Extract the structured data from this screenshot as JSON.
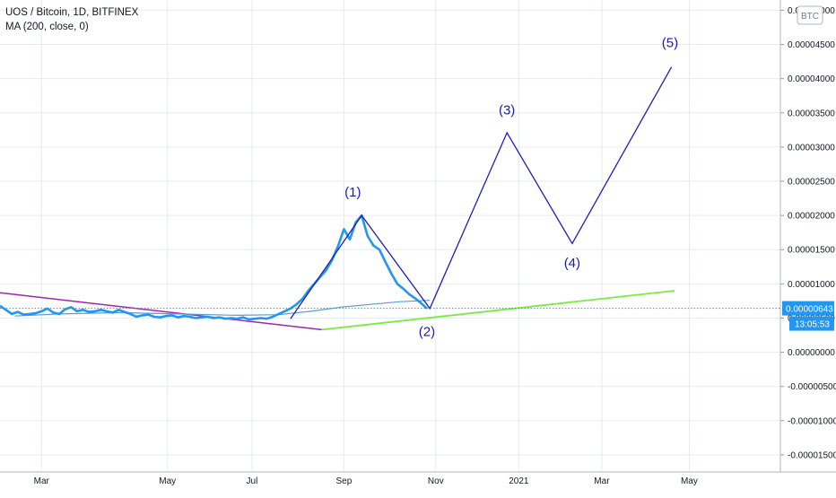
{
  "legend": {
    "symbol_line": "UOS / Bitcoin, 1D, BITFINEX",
    "indicator_line": "MA (200, close, 0)"
  },
  "currency_badge": "BTC",
  "price_label": "0.00000643",
  "countdown_label": "13:05:53",
  "colors": {
    "price": "#2196f3",
    "ma": "#5b9bd5",
    "wave": "#1f1fb4",
    "wave_label": "#1a1ab8",
    "upper_trend": "#9c27b0",
    "lower_trend": "#76ee3e",
    "price_tag_bg": "#2196f3",
    "grid": "#e6ebf1",
    "axis_text": "#131722"
  },
  "chart_data": {
    "type": "line",
    "title": "UOS / Bitcoin, 1D, BITFINEX",
    "y_ticks": [
      "0.00005000",
      "0.00004500",
      "0.00004000",
      "0.00003500",
      "0.00003000",
      "0.00002500",
      "0.00002000",
      "0.00001500",
      "0.00001000",
      "0.00000500",
      "0.00000000",
      "-0.00000500",
      "-0.00001000",
      "-0.00001500"
    ],
    "x_ticks": [
      "Mar",
      "May",
      "Jul",
      "Sep",
      "Nov",
      "2021",
      "Mar",
      "May"
    ],
    "ylim": [
      -1.75e-05,
      5.15e-05
    ],
    "grid": true,
    "price_series": {
      "name": "",
      "points": [
        [
          0,
          6.8e-06
        ],
        [
          4,
          6.2e-06
        ],
        [
          8,
          5.6e-06
        ],
        [
          12,
          5.9e-06
        ],
        [
          16,
          5.5e-06
        ],
        [
          20,
          5.6e-06
        ],
        [
          24,
          5.7e-06
        ],
        [
          28,
          6e-06
        ],
        [
          32,
          6.4e-06
        ],
        [
          36,
          5.8e-06
        ],
        [
          40,
          5.6e-06
        ],
        [
          44,
          6.3e-06
        ],
        [
          48,
          6.6e-06
        ],
        [
          52,
          6e-06
        ],
        [
          56,
          6.2e-06
        ],
        [
          60,
          5.9e-06
        ],
        [
          64,
          6e-06
        ],
        [
          68,
          6.2e-06
        ],
        [
          72,
          6e-06
        ],
        [
          76,
          5.8e-06
        ],
        [
          80,
          6.2e-06
        ],
        [
          84,
          5.9e-06
        ],
        [
          88,
          5.6e-06
        ],
        [
          92,
          5.2e-06
        ],
        [
          96,
          5.4e-06
        ],
        [
          100,
          5.5e-06
        ],
        [
          104,
          5.2e-06
        ],
        [
          108,
          5.1e-06
        ],
        [
          112,
          5.3e-06
        ],
        [
          116,
          5.4e-06
        ],
        [
          120,
          5.1e-06
        ],
        [
          124,
          5.3e-06
        ],
        [
          128,
          5.2e-06
        ],
        [
          132,
          5e-06
        ],
        [
          136,
          5.1e-06
        ],
        [
          140,
          5.2e-06
        ],
        [
          144,
          5e-06
        ],
        [
          148,
          5.1e-06
        ],
        [
          152,
          4.9e-06
        ],
        [
          156,
          5e-06
        ],
        [
          160,
          4.9e-06
        ],
        [
          164,
          5.1e-06
        ],
        [
          168,
          4.8e-06
        ],
        [
          172,
          4.9e-06
        ],
        [
          176,
          5e-06
        ],
        [
          180,
          4.9e-06
        ],
        [
          184,
          5.2e-06
        ],
        [
          188,
          5.6e-06
        ],
        [
          192,
          6e-06
        ],
        [
          196,
          6.4e-06
        ],
        [
          200,
          7e-06
        ],
        [
          204,
          7.8e-06
        ],
        [
          208,
          9e-06
        ],
        [
          212,
          1e-05
        ],
        [
          216,
          1.1e-05
        ],
        [
          220,
          1.2e-05
        ],
        [
          224,
          1.35e-05
        ],
        [
          228,
          1.55e-05
        ],
        [
          232,
          1.8e-05
        ],
        [
          236,
          1.65e-05
        ],
        [
          240,
          1.9e-05
        ],
        [
          244,
          2e-05
        ],
        [
          248,
          1.7e-05
        ],
        [
          252,
          1.56e-05
        ],
        [
          256,
          1.5e-05
        ],
        [
          260,
          1.32e-05
        ],
        [
          264,
          1.15e-05
        ],
        [
          268,
          1e-05
        ],
        [
          272,
          9.3e-06
        ],
        [
          276,
          8.5e-06
        ],
        [
          280,
          7.9e-06
        ],
        [
          284,
          7.2e-06
        ],
        [
          288,
          6.4e-06
        ]
      ]
    },
    "ma_series": {
      "name": "MA (200, close, 0)",
      "points": [
        [
          10,
          5.3e-06
        ],
        [
          40,
          5.6e-06
        ],
        [
          80,
          5.8e-06
        ],
        [
          120,
          5.6e-06
        ],
        [
          160,
          5.4e-06
        ],
        [
          188,
          5.5e-06
        ],
        [
          210,
          6e-06
        ],
        [
          230,
          6.6e-06
        ],
        [
          250,
          7e-06
        ],
        [
          270,
          7.4e-06
        ],
        [
          290,
          7.6e-06
        ]
      ]
    },
    "wave_series": {
      "name": "",
      "points": [
        [
          196,
          4.9e-06
        ],
        [
          244,
          2e-05
        ],
        [
          290,
          6.4e-06
        ],
        [
          342,
          3.21e-05
        ],
        [
          386,
          1.59e-05
        ],
        [
          453,
          4.17e-05
        ]
      ]
    },
    "wave_labels": [
      {
        "text": "(1)",
        "x": 238,
        "y": 2.28e-05
      },
      {
        "text": "(2)",
        "x": 288,
        "y": 2.4e-06
      },
      {
        "text": "(3)",
        "x": 342,
        "y": 3.48e-05
      },
      {
        "text": "(4)",
        "x": 386,
        "y": 1.24e-05
      },
      {
        "text": "(5)",
        "x": 452,
        "y": 4.46e-05
      }
    ],
    "upper_trendline": {
      "points": [
        [
          0,
          8.7e-06
        ],
        [
          217,
          3.3e-06
        ]
      ]
    },
    "lower_trendline": {
      "points": [
        [
          217,
          3.3e-06
        ],
        [
          455,
          9e-06
        ]
      ]
    },
    "current_price_level": 6.43e-06
  }
}
